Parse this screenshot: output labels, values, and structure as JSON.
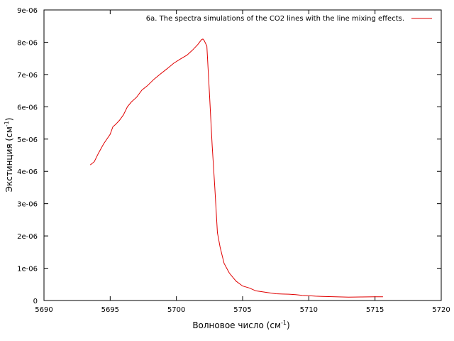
{
  "chart_data": {
    "type": "line",
    "legend_position": "top-right",
    "grid": false,
    "xlabel": "Волновое число (см",
    "xlabel_sup": "-1",
    "xlabel_end": ")",
    "ylabel": "Экстинция (см",
    "ylabel_sup": "-1",
    "ylabel_end": ")",
    "xlim": [
      5690,
      5720
    ],
    "ylim": [
      0,
      9e-06
    ],
    "x_ticks": [
      5690,
      5695,
      5700,
      5705,
      5710,
      5715,
      5720
    ],
    "x_tick_labels": [
      "5690",
      "5695",
      "5700",
      "5705",
      "5710",
      "5715",
      "5720"
    ],
    "y_ticks": [
      0,
      1e-06,
      2e-06,
      3e-06,
      4e-06,
      5e-06,
      6e-06,
      7e-06,
      8e-06,
      9e-06
    ],
    "y_tick_labels": [
      "0",
      "1e-06",
      "2e-06",
      "3e-06",
      "4e-06",
      "5e-06",
      "6e-06",
      "7e-06",
      "8e-06",
      "9e-06"
    ],
    "series": [
      {
        "name": "6a. The spectra simulations of the CO2 lines with the line mixing effects.",
        "color": "#e00000",
        "x": [
          5693.5,
          5693.8,
          5694.1,
          5694.5,
          5695.0,
          5695.2,
          5695.4,
          5695.7,
          5696.0,
          5696.3,
          5696.6,
          5697.0,
          5697.4,
          5697.8,
          5698.3,
          5698.8,
          5699.3,
          5699.8,
          5700.3,
          5700.8,
          5701.2,
          5701.6,
          5701.9,
          5702.0,
          5702.1,
          5702.3,
          5702.5,
          5702.7,
          5702.9,
          5703.1,
          5703.3,
          5703.6,
          5704.0,
          5704.5,
          5705.0,
          5705.5,
          5706.0,
          5706.5,
          5707.0,
          5707.5,
          5708.0,
          5708.5,
          5709.0,
          5709.5,
          5710.0,
          5710.5,
          5711.0,
          5711.5,
          5712.0,
          5712.5,
          5713.0,
          5713.5,
          5714.0,
          5714.5,
          5715.0,
          5715.6
        ],
        "y": [
          4.2e-06,
          4.3e-06,
          4.55e-06,
          4.85e-06,
          5.15e-06,
          5.38e-06,
          5.45e-06,
          5.58e-06,
          5.75e-06,
          6e-06,
          6.15e-06,
          6.3e-06,
          6.52e-06,
          6.65e-06,
          6.85e-06,
          7.02e-06,
          7.18e-06,
          7.35e-06,
          7.48e-06,
          7.6e-06,
          7.75e-06,
          7.92e-06,
          8.08e-06,
          8.1e-06,
          8.05e-06,
          7.88e-06,
          6.4e-06,
          4.8e-06,
          3.5e-06,
          2.1e-06,
          1.65e-06,
          1.15e-06,
          8.5e-07,
          6e-07,
          4.5e-07,
          3.9e-07,
          3e-07,
          2.7e-07,
          2.4e-07,
          2.1e-07,
          2e-07,
          1.95e-07,
          1.8e-07,
          1.6e-07,
          1.5e-07,
          1.35e-07,
          1.25e-07,
          1.2e-07,
          1.15e-07,
          1.1e-07,
          1.05e-07,
          1.08e-07,
          1.1e-07,
          1.12e-07,
          1.15e-07,
          1.15e-07
        ]
      }
    ]
  }
}
